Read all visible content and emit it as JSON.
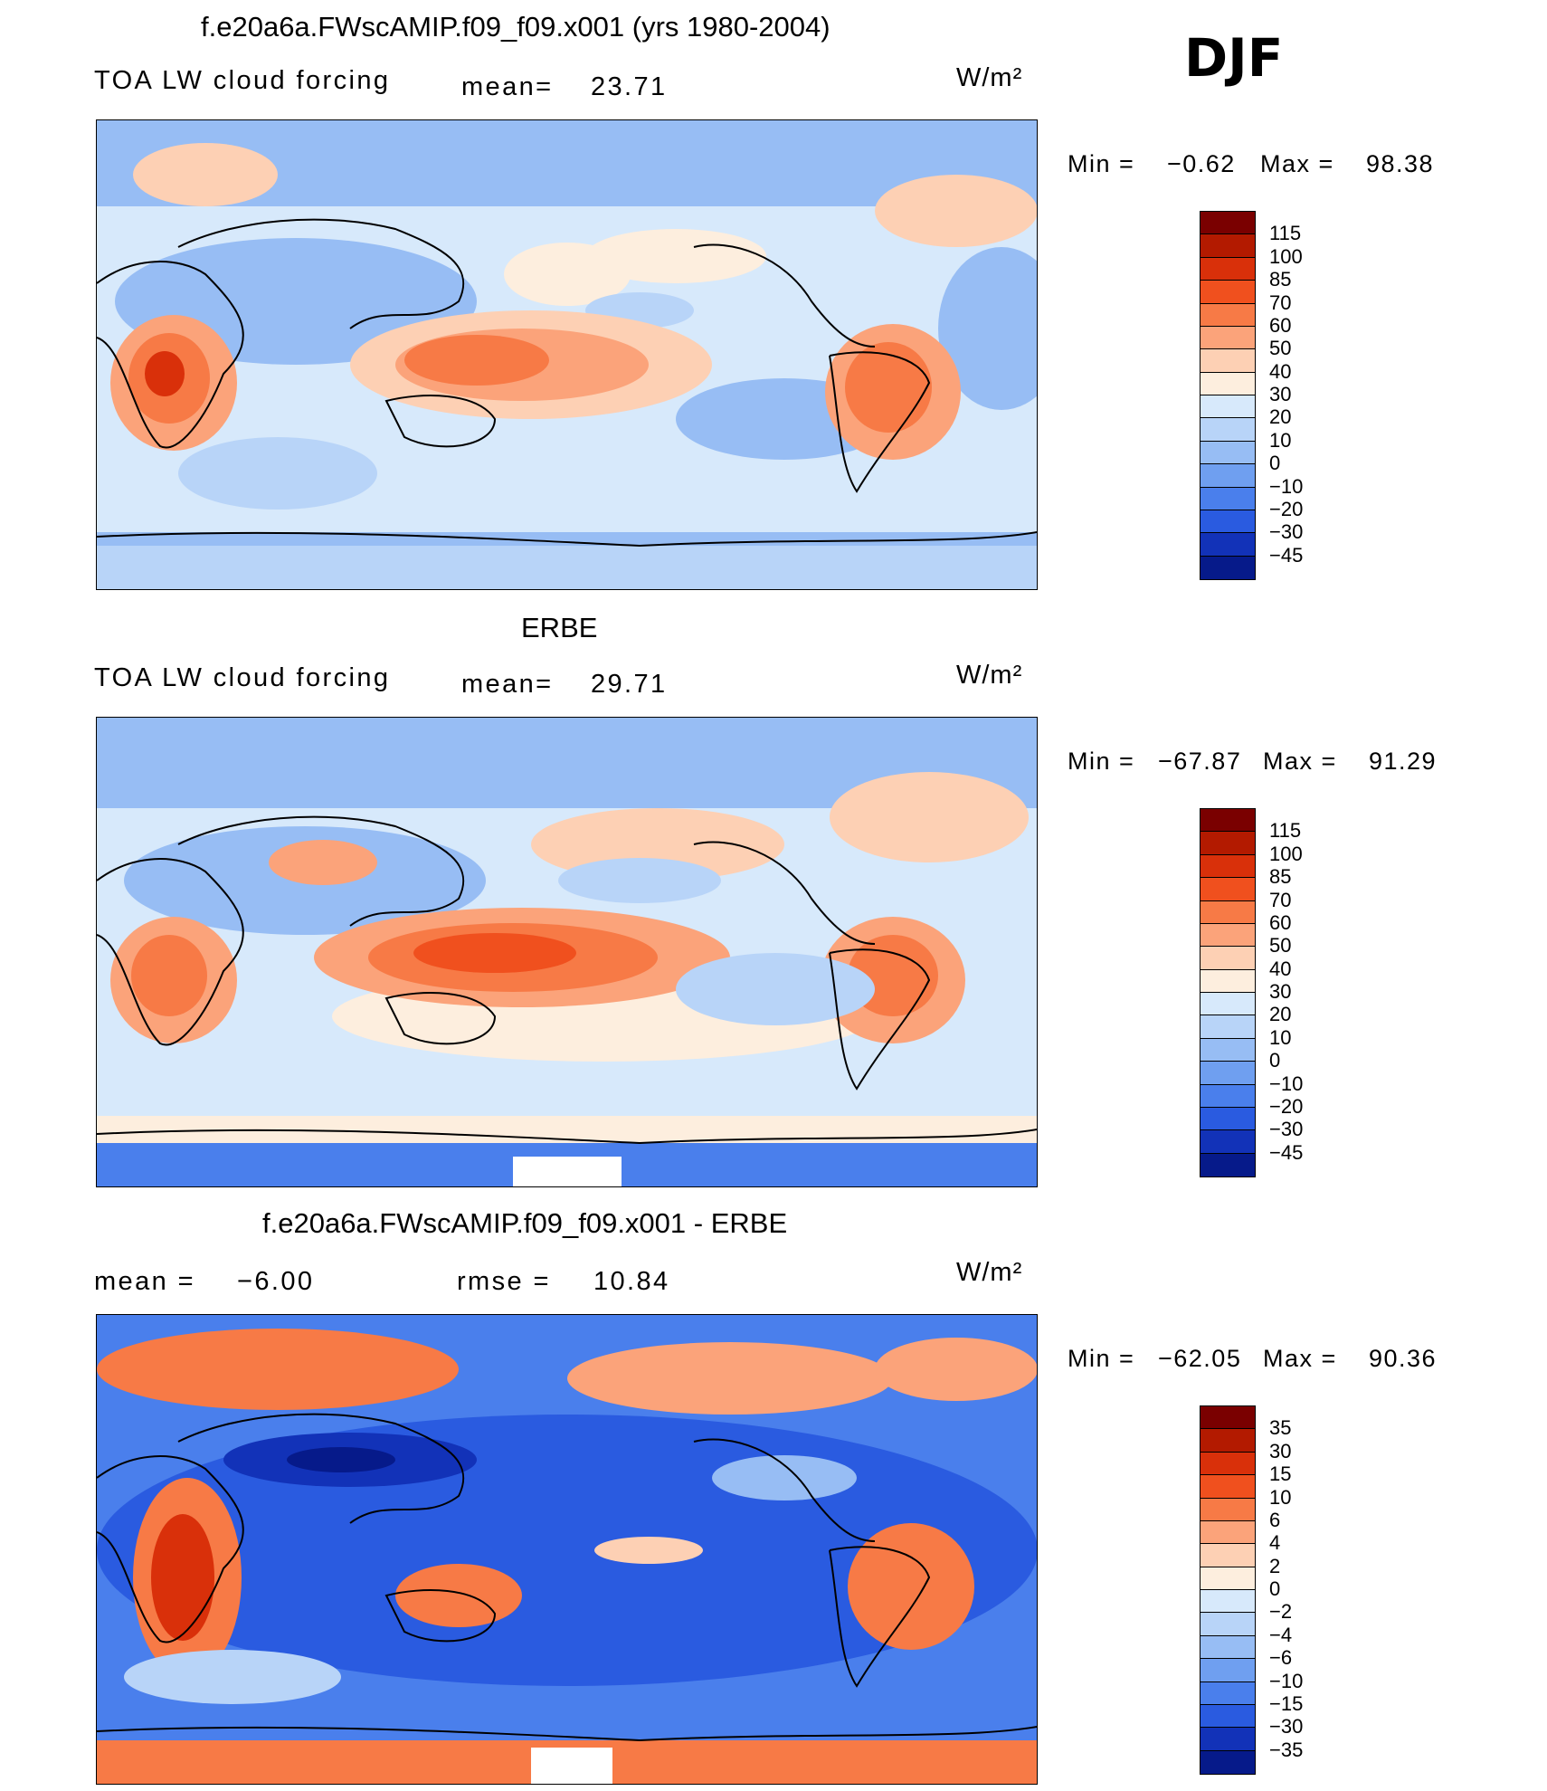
{
  "season": "DJF",
  "units": "W/m²",
  "panels": [
    {
      "id": "model",
      "title": "f.e20a6a.FWscAMIP.f09_f09.x001 (yrs 1980-2004)",
      "left_label": "TOA LW cloud forcing",
      "stat_label": "mean=",
      "stat_value": "23.71",
      "min_label": "Min =",
      "min_value": "-0.62",
      "max_label": "Max =",
      "max_value": "98.38",
      "colorbar_levels": [
        "115",
        "100",
        "85",
        "70",
        "60",
        "50",
        "40",
        "30",
        "20",
        "10",
        "0",
        "-10",
        "-20",
        "-30",
        "-45"
      ]
    },
    {
      "id": "obs",
      "title": "ERBE",
      "left_label": "TOA LW cloud forcing",
      "stat_label": "mean=",
      "stat_value": "29.71",
      "min_label": "Min =",
      "min_value": "-67.87",
      "max_label": "Max =",
      "max_value": "91.29",
      "colorbar_levels": [
        "115",
        "100",
        "85",
        "70",
        "60",
        "50",
        "40",
        "30",
        "20",
        "10",
        "0",
        "-10",
        "-20",
        "-30",
        "-45"
      ]
    },
    {
      "id": "diff",
      "title": "f.e20a6a.FWscAMIP.f09_f09.x001 - ERBE",
      "mean_label": "mean =",
      "mean_value": "-6.00",
      "rmse_label": "rmse =",
      "rmse_value": "10.84",
      "min_label": "Min =",
      "min_value": "-62.05",
      "max_label": "Max =",
      "max_value": "90.36",
      "colorbar_levels": [
        "35",
        "30",
        "15",
        "10",
        "6",
        "4",
        "2",
        "0",
        "-2",
        "-4",
        "-6",
        "-10",
        "-15",
        "-30",
        "-35"
      ]
    }
  ],
  "colors": {
    "scale": [
      "#7a0000",
      "#b31a00",
      "#d9300a",
      "#f0501e",
      "#f77a46",
      "#fba37a",
      "#fdd0b4",
      "#fdeede",
      "#d7e9fb",
      "#b8d4f8",
      "#97bdf4",
      "#6f9ff0",
      "#4a7fec",
      "#2a5be0",
      "#1232b8",
      "#061a8a"
    ],
    "coast": "#000000"
  }
}
